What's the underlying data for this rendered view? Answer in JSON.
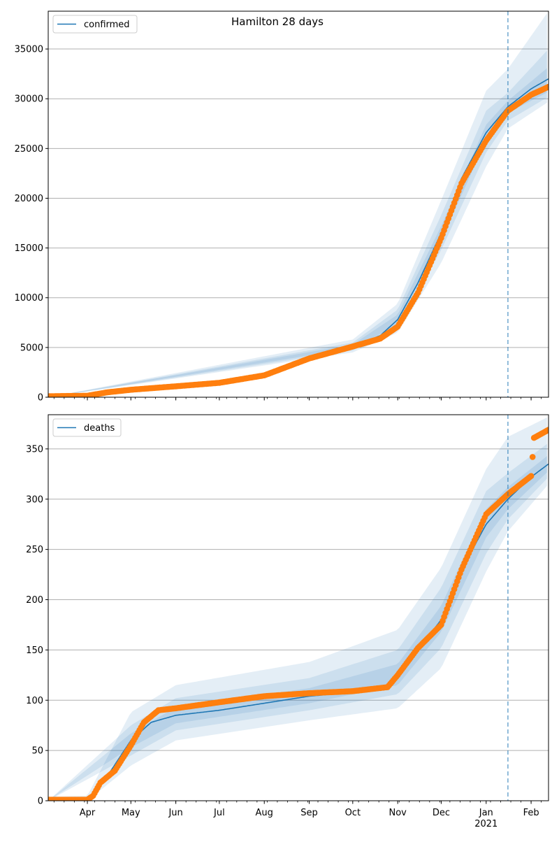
{
  "title": "Hamilton 28 days",
  "colors": {
    "model_line": "#1f77b4",
    "observed": "#ff7f0e",
    "band": "#1f77b4",
    "cutoff_line": "#1f77b4",
    "grid": "#b0b0b0"
  },
  "x_axis": {
    "months": [
      "Apr",
      "May",
      "Jun",
      "Jul",
      "Aug",
      "Sep",
      "Oct",
      "Nov",
      "Dec",
      "Jan",
      "Feb"
    ],
    "year_label": "2021"
  },
  "chart_data": [
    {
      "type": "line",
      "legend": "confirmed",
      "legend_position": "top-left",
      "grid": "horizontal",
      "xlim": [
        "2020-03-05",
        "2021-02-13"
      ],
      "cutoff_date": "2021-01-16",
      "ylim": [
        0,
        38800
      ],
      "yticks": [
        0,
        5000,
        10000,
        15000,
        20000,
        25000,
        30000,
        35000
      ],
      "model": [
        [
          "2020-03-05",
          0
        ],
        [
          "2020-04-01",
          200
        ],
        [
          "2020-05-01",
          800
        ],
        [
          "2020-06-01",
          1150
        ],
        [
          "2020-07-01",
          1450
        ],
        [
          "2020-08-01",
          2300
        ],
        [
          "2020-09-01",
          4000
        ],
        [
          "2020-10-01",
          5100
        ],
        [
          "2020-10-20",
          6200
        ],
        [
          "2020-11-01",
          7800
        ],
        [
          "2020-11-15",
          11500
        ],
        [
          "2020-12-01",
          16500
        ],
        [
          "2020-12-15",
          22000
        ],
        [
          "2021-01-01",
          26600
        ],
        [
          "2021-01-16",
          29200
        ],
        [
          "2021-02-01",
          31000
        ],
        [
          "2021-02-13",
          32000
        ]
      ],
      "bands": [
        [
          [
            "2020-03-05",
            0,
            0
          ],
          [
            "2020-10-01",
            4900,
            5300
          ],
          [
            "2020-11-01",
            7300,
            8300
          ],
          [
            "2020-12-01",
            15800,
            17200
          ],
          [
            "2021-01-01",
            25800,
            27400
          ],
          [
            "2021-01-16",
            28600,
            29800
          ],
          [
            "2021-02-13",
            30700,
            33200
          ]
        ],
        [
          [
            "2020-03-05",
            0,
            0
          ],
          [
            "2020-10-01",
            4700,
            5500
          ],
          [
            "2020-11-01",
            6900,
            8800
          ],
          [
            "2020-12-01",
            14800,
            18300
          ],
          [
            "2021-01-01",
            24600,
            28800
          ],
          [
            "2021-01-16",
            27800,
            30600
          ],
          [
            "2021-02-13",
            30200,
            35000
          ]
        ],
        [
          [
            "2020-03-05",
            0,
            0
          ],
          [
            "2020-10-01",
            4500,
            5800
          ],
          [
            "2020-11-01",
            6500,
            9400
          ],
          [
            "2020-12-01",
            13500,
            19800
          ],
          [
            "2021-01-01",
            23200,
            30800
          ],
          [
            "2021-01-16",
            27000,
            33000
          ],
          [
            "2021-02-13",
            29700,
            38800
          ]
        ]
      ],
      "observed": [
        [
          "2020-03-05",
          100
        ],
        [
          "2020-04-01",
          150
        ],
        [
          "2020-04-15",
          500
        ],
        [
          "2020-05-01",
          750
        ],
        [
          "2020-06-01",
          1100
        ],
        [
          "2020-07-01",
          1450
        ],
        [
          "2020-08-01",
          2200
        ],
        [
          "2020-09-01",
          3900
        ],
        [
          "2020-10-01",
          5100
        ],
        [
          "2020-10-20",
          5900
        ],
        [
          "2020-11-01",
          7100
        ],
        [
          "2020-11-15",
          10500
        ],
        [
          "2020-12-01",
          16000
        ],
        [
          "2020-12-15",
          21500
        ],
        [
          "2021-01-01",
          25800
        ],
        [
          "2021-01-16",
          28800
        ],
        [
          "2021-02-01",
          30400
        ],
        [
          "2021-02-13",
          31200
        ]
      ]
    },
    {
      "type": "line",
      "legend": "deaths",
      "legend_position": "top-left",
      "grid": "horizontal",
      "xlim": [
        "2020-03-05",
        "2021-02-13"
      ],
      "cutoff_date": "2021-01-16",
      "ylim": [
        0,
        384
      ],
      "yticks": [
        0,
        50,
        100,
        150,
        200,
        250,
        300,
        350
      ],
      "model": [
        [
          "2020-03-05",
          0
        ],
        [
          "2020-04-01",
          1
        ],
        [
          "2020-04-15",
          25
        ],
        [
          "2020-05-01",
          60
        ],
        [
          "2020-05-15",
          78
        ],
        [
          "2020-06-01",
          85
        ],
        [
          "2020-07-01",
          90
        ],
        [
          "2020-08-01",
          97
        ],
        [
          "2020-09-01",
          104
        ],
        [
          "2020-10-01",
          108
        ],
        [
          "2020-10-25",
          113
        ],
        [
          "2020-11-01",
          125
        ],
        [
          "2020-11-15",
          150
        ],
        [
          "2020-12-01",
          180
        ],
        [
          "2020-12-15",
          230
        ],
        [
          "2021-01-01",
          275
        ],
        [
          "2021-01-16",
          300
        ],
        [
          "2021-02-01",
          322
        ],
        [
          "2021-02-13",
          335
        ]
      ],
      "bands": [
        [
          [
            "2020-03-05",
            0,
            0
          ],
          [
            "2020-05-01",
            53,
            67
          ],
          [
            "2020-06-01",
            77,
            93
          ],
          [
            "2020-09-01",
            97,
            112
          ],
          [
            "2020-11-01",
            115,
            136
          ],
          [
            "2020-12-01",
            168,
            194
          ],
          [
            "2021-01-01",
            262,
            290
          ],
          [
            "2021-01-16",
            290,
            312
          ],
          [
            "2021-02-13",
            328,
            344
          ]
        ],
        [
          [
            "2020-03-05",
            0,
            0
          ],
          [
            "2020-05-01",
            45,
            75
          ],
          [
            "2020-06-01",
            70,
            102
          ],
          [
            "2020-09-01",
            90,
            122
          ],
          [
            "2020-11-01",
            106,
            150
          ],
          [
            "2020-12-01",
            152,
            212
          ],
          [
            "2021-01-01",
            246,
            308
          ],
          [
            "2021-01-16",
            280,
            326
          ],
          [
            "2021-02-13",
            322,
            356
          ]
        ],
        [
          [
            "2020-03-05",
            0,
            4
          ],
          [
            "2020-04-01",
            0,
            5
          ],
          [
            "2020-05-01",
            35,
            88
          ],
          [
            "2020-06-01",
            60,
            115
          ],
          [
            "2020-09-01",
            80,
            138
          ],
          [
            "2020-11-01",
            92,
            170
          ],
          [
            "2020-12-01",
            132,
            232
          ],
          [
            "2021-01-01",
            228,
            330
          ],
          [
            "2021-01-16",
            268,
            362
          ],
          [
            "2021-02-13",
            315,
            382
          ]
        ]
      ],
      "observed": [
        [
          "2020-03-05",
          1
        ],
        [
          "2020-04-01",
          1
        ],
        [
          "2020-04-05",
          5
        ],
        [
          "2020-04-10",
          18
        ],
        [
          "2020-04-20",
          30
        ],
        [
          "2020-05-01",
          55
        ],
        [
          "2020-05-10",
          78
        ],
        [
          "2020-05-20",
          90
        ],
        [
          "2020-06-01",
          92
        ],
        [
          "2020-07-01",
          98
        ],
        [
          "2020-08-01",
          104
        ],
        [
          "2020-09-01",
          107
        ],
        [
          "2020-10-01",
          109
        ],
        [
          "2020-10-25",
          113
        ],
        [
          "2020-11-01",
          125
        ],
        [
          "2020-11-15",
          152
        ],
        [
          "2020-12-01",
          175
        ],
        [
          "2020-12-15",
          230
        ],
        [
          "2021-01-01",
          285
        ],
        [
          "2021-01-16",
          305
        ],
        [
          "2021-02-01",
          323
        ],
        [
          "2021-02-03",
          361
        ],
        [
          "2021-02-13",
          369
        ]
      ]
    }
  ]
}
